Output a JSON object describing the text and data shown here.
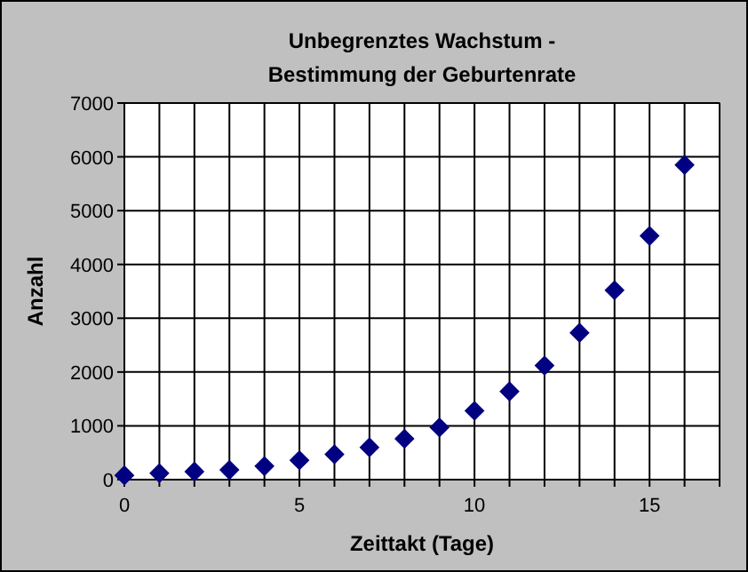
{
  "chart_data": {
    "type": "scatter",
    "title": "Unbegrenztes Wachstum -\nBestimmung der Geburtenrate",
    "xlabel": "Zeittakt (Tage)",
    "ylabel": "Anzahl",
    "x": [
      0,
      1,
      2,
      3,
      4,
      5,
      6,
      7,
      8,
      9,
      10,
      11,
      12,
      13,
      14,
      15,
      16
    ],
    "series": [
      {
        "color": "#000080",
        "values": [
          80,
          120,
          150,
          180,
          250,
          360,
          470,
          600,
          760,
          970,
          1280,
          1640,
          2120,
          2730,
          3520,
          4530,
          5850
        ]
      }
    ],
    "xlim": [
      0,
      17
    ],
    "xticks": [
      0,
      {
        "value": 1,
        "label": null
      },
      {
        "value": 2,
        "label": null
      },
      {
        "value": 3,
        "label": null
      },
      {
        "value": 4,
        "label": null
      },
      5,
      {
        "value": 6,
        "label": null
      },
      {
        "value": 7,
        "label": null
      },
      {
        "value": 8,
        "label": null
      },
      {
        "value": 9,
        "label": null
      },
      10,
      {
        "value": 11,
        "label": null
      },
      {
        "value": 12,
        "label": null
      },
      {
        "value": 13,
        "label": null
      },
      {
        "value": 14,
        "label": null
      },
      15,
      {
        "value": 16,
        "label": null
      },
      {
        "value": 17,
        "label": null
      }
    ],
    "ylim": [
      0,
      7000
    ],
    "yticks": [
      0,
      1000,
      2000,
      3000,
      4000,
      5000,
      6000,
      7000
    ],
    "grid": true,
    "marker": "diamond"
  }
}
